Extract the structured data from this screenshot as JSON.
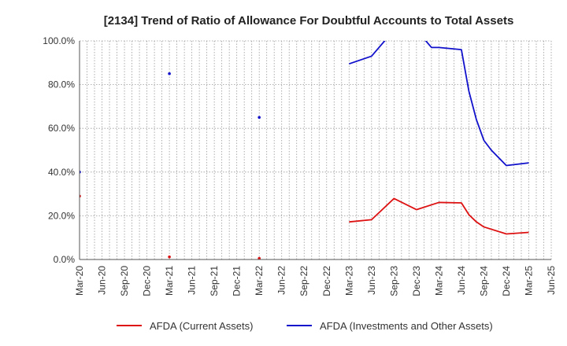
{
  "chart_data": {
    "type": "line",
    "title": "[2134]  Trend of Ratio of Allowance For Doubtful Accounts to Total Assets",
    "xlabel": "",
    "ylabel": "",
    "ylim": [
      0,
      100
    ],
    "y_ticks": [
      "0.0%",
      "20.0%",
      "40.0%",
      "60.0%",
      "80.0%",
      "100.0%"
    ],
    "y_tick_values": [
      0,
      20,
      40,
      60,
      80,
      100
    ],
    "x_ticks": [
      "Mar-20",
      "Jun-20",
      "Sep-20",
      "Dec-20",
      "Mar-21",
      "Jun-21",
      "Sep-21",
      "Dec-21",
      "Mar-22",
      "Jun-22",
      "Sep-22",
      "Dec-22",
      "Mar-23",
      "Jun-23",
      "Sep-23",
      "Dec-23",
      "Mar-24",
      "Jun-24",
      "Sep-24",
      "Dec-24",
      "Mar-25",
      "Jun-25"
    ],
    "grid": true,
    "legend_position": "bottom",
    "series": [
      {
        "name": "AFDA (Current Assets)",
        "color": "#dd1111",
        "points": [
          {
            "x": "Mar-20",
            "y": 29.0
          },
          {
            "x": "Mar-21",
            "y": 1.2
          },
          {
            "x": "Mar-22",
            "y": 0.5
          },
          {
            "x": "Mar-23",
            "y": 17.2
          },
          {
            "x": "Jun-23",
            "y": 18.2
          },
          {
            "x": "Sep-23",
            "y": 27.9
          },
          {
            "x": "Dec-23",
            "y": 22.8
          },
          {
            "x": "Mar-24",
            "y": 26.1
          },
          {
            "x": "Jun-24",
            "y": 25.9
          },
          {
            "x": "Jul-24",
            "y": 20.5
          },
          {
            "x": "Aug-24",
            "y": 17.2
          },
          {
            "x": "Sep-24",
            "y": 14.9
          },
          {
            "x": "Dec-24",
            "y": 11.7
          },
          {
            "x": "Mar-25",
            "y": 12.4
          }
        ]
      },
      {
        "name": "AFDA (Investments and Other Assets)",
        "color": "#1111cc",
        "points": [
          {
            "x": "Mar-20",
            "y": 40.0
          },
          {
            "x": "Mar-21",
            "y": 85.0
          },
          {
            "x": "Mar-22",
            "y": 65.0
          },
          {
            "x": "Mar-23",
            "y": 89.5
          },
          {
            "x": "Jun-23",
            "y": 93.0
          },
          {
            "x": "Aug-23",
            "y": 101.0
          },
          {
            "x": "Jan-24",
            "y": 101.0
          },
          {
            "x": "Feb-24",
            "y": 97.0
          },
          {
            "x": "Mar-24",
            "y": 97.0
          },
          {
            "x": "Jun-24",
            "y": 96.0
          },
          {
            "x": "Jul-24",
            "y": 77.0
          },
          {
            "x": "Aug-24",
            "y": 64.0
          },
          {
            "x": "Sep-24",
            "y": 54.5
          },
          {
            "x": "Oct-24",
            "y": 50.0
          },
          {
            "x": "Nov-24",
            "y": 46.5
          },
          {
            "x": "Dec-24",
            "y": 43.0
          },
          {
            "x": "Mar-25",
            "y": 44.2
          }
        ]
      }
    ]
  }
}
